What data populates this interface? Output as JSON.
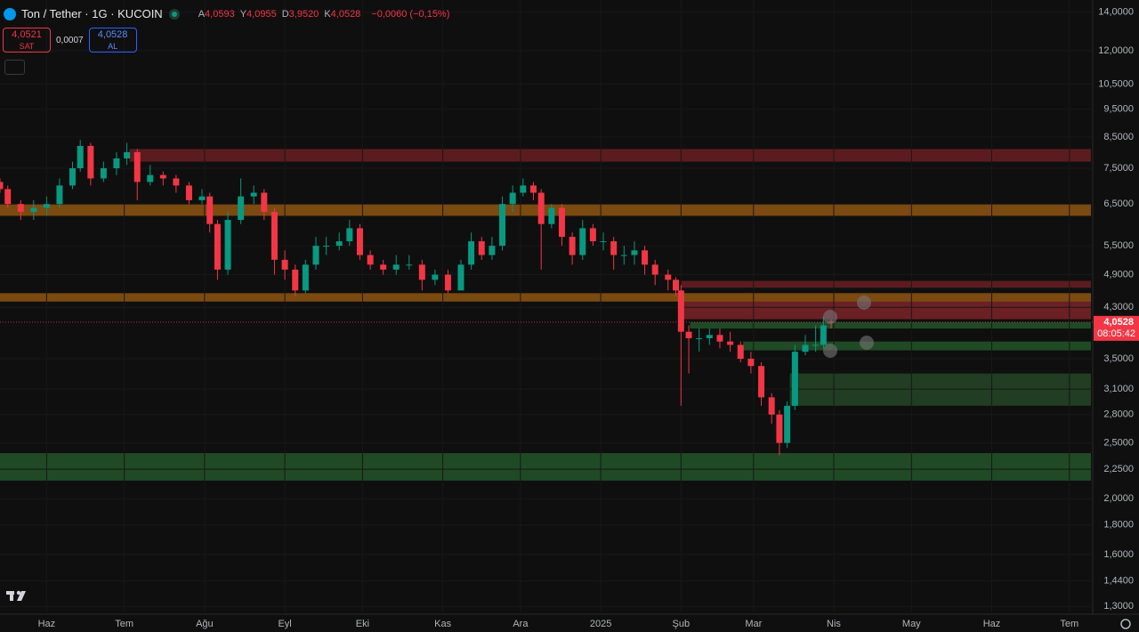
{
  "header": {
    "symbol": "Ton / Tether · 1G · KUCOIN",
    "ohlc": [
      {
        "key": "A",
        "value": "4,0593"
      },
      {
        "key": "Y",
        "value": "4,0955"
      },
      {
        "key": "D",
        "value": "3,9520"
      },
      {
        "key": "K",
        "value": "4,0528"
      }
    ],
    "change": "−0,0060 (−0,15%)",
    "sell": {
      "price": "4,0521",
      "label": "SAT"
    },
    "spread": "0,0007",
    "buy": {
      "price": "4,0528",
      "label": "AL"
    }
  },
  "chart_data": {
    "type": "candlestick",
    "log_scale": true,
    "x": [
      -18,
      -15,
      -10,
      -5,
      0,
      5,
      10,
      13,
      17,
      22,
      27,
      31,
      35,
      40,
      45,
      50,
      55,
      60,
      63,
      66,
      70,
      75,
      80,
      84,
      88,
      92,
      96,
      100,
      104,
      108,
      113,
      117,
      121,
      125,
      130,
      135,
      140,
      145,
      150,
      155,
      160,
      164,
      168,
      172,
      176,
      180,
      184,
      188,
      191,
      195,
      199,
      203,
      207,
      211,
      215,
      219,
      223,
      227,
      231,
      235,
      240,
      243,
      245,
      248,
      252,
      256,
      260,
      264,
      268,
      272,
      276,
      280,
      283,
      286,
      289,
      293,
      297,
      300,
      303
    ],
    "open": [
      7.1,
      6.9,
      6.5,
      6.3,
      6.4,
      6.5,
      7.0,
      7.5,
      8.2,
      7.2,
      7.5,
      7.8,
      8.0,
      7.1,
      7.3,
      7.2,
      7.0,
      6.6,
      6.7,
      6.0,
      5.0,
      6.1,
      6.7,
      6.8,
      6.3,
      5.2,
      5.0,
      4.6,
      5.1,
      5.5,
      5.5,
      5.6,
      5.9,
      5.3,
      5.1,
      5.0,
      5.1,
      5.1,
      4.8,
      4.9,
      4.6,
      5.1,
      5.6,
      5.3,
      5.5,
      6.5,
      6.8,
      7.0,
      6.8,
      6.0,
      6.4,
      5.7,
      5.3,
      5.9,
      5.6,
      5.6,
      5.3,
      5.3,
      5.4,
      5.1,
      4.9,
      4.8,
      4.6,
      3.9,
      3.8,
      3.8,
      3.85,
      3.75,
      3.7,
      3.5,
      3.4,
      3.0,
      2.8,
      2.5,
      2.9,
      3.6,
      3.7,
      3.7,
      4.0593
    ],
    "high": [
      7.2,
      7.0,
      6.6,
      6.6,
      6.7,
      7.2,
      7.7,
      8.4,
      8.3,
      7.7,
      8.0,
      8.3,
      8.1,
      7.6,
      7.4,
      7.3,
      7.1,
      6.9,
      6.8,
      6.1,
      6.3,
      7.2,
      7.0,
      6.9,
      6.4,
      5.4,
      5.1,
      5.2,
      5.7,
      5.7,
      5.8,
      6.1,
      6.0,
      5.4,
      5.2,
      5.3,
      5.3,
      5.2,
      5.0,
      5.0,
      5.2,
      5.8,
      5.7,
      5.7,
      6.7,
      7.0,
      7.2,
      7.1,
      6.9,
      6.5,
      6.5,
      5.8,
      6.1,
      6.0,
      5.8,
      5.7,
      5.5,
      5.6,
      5.5,
      5.2,
      5.0,
      4.85,
      4.7,
      4.0,
      3.95,
      3.95,
      3.95,
      3.9,
      3.75,
      3.6,
      3.45,
      3.05,
      2.85,
      2.95,
      3.7,
      3.85,
      4.0,
      4.15,
      4.0955
    ],
    "low": [
      6.8,
      6.4,
      6.1,
      6.1,
      6.2,
      6.4,
      6.9,
      7.4,
      7.0,
      7.1,
      7.3,
      7.6,
      6.6,
      7.0,
      7.0,
      6.8,
      6.5,
      6.5,
      5.8,
      4.8,
      4.9,
      6.0,
      6.5,
      6.1,
      4.9,
      4.8,
      4.5,
      4.55,
      5.0,
      5.3,
      5.4,
      5.5,
      5.2,
      5.0,
      4.9,
      4.9,
      5.0,
      4.6,
      4.7,
      4.55,
      4.6,
      5.0,
      5.2,
      5.2,
      5.4,
      6.3,
      6.7,
      6.6,
      5.0,
      5.9,
      5.5,
      5.1,
      5.2,
      5.5,
      5.4,
      5.0,
      5.1,
      5.1,
      4.9,
      4.7,
      4.6,
      4.5,
      2.9,
      3.3,
      3.6,
      3.7,
      3.65,
      3.6,
      3.45,
      3.3,
      2.9,
      2.7,
      2.38,
      2.45,
      2.85,
      3.55,
      3.6,
      3.65,
      3.952
    ],
    "close": [
      6.9,
      6.5,
      6.3,
      6.4,
      6.5,
      7.0,
      7.5,
      8.2,
      7.2,
      7.5,
      7.8,
      8.0,
      7.1,
      7.3,
      7.2,
      7.0,
      6.6,
      6.7,
      6.0,
      5.0,
      6.1,
      6.7,
      6.8,
      6.3,
      5.2,
      5.0,
      4.6,
      5.1,
      5.5,
      5.5,
      5.6,
      5.9,
      5.3,
      5.1,
      5.0,
      5.1,
      5.1,
      4.8,
      4.9,
      4.6,
      5.1,
      5.6,
      5.3,
      5.5,
      6.5,
      6.8,
      7.0,
      6.8,
      6.0,
      6.4,
      5.7,
      5.3,
      5.9,
      5.6,
      5.6,
      5.3,
      5.3,
      5.4,
      5.1,
      4.9,
      4.8,
      4.6,
      3.9,
      3.8,
      3.8,
      3.85,
      3.75,
      3.7,
      3.5,
      3.4,
      3.0,
      2.8,
      2.5,
      2.9,
      3.6,
      3.7,
      3.7,
      4.0,
      4.0528
    ],
    "up_color": "#089981",
    "down_color": "#f23645",
    "xlim": [
      -18,
      404
    ],
    "xticks": [
      {
        "value": 0,
        "label": "Haz"
      },
      {
        "value": 30,
        "label": "Tem"
      },
      {
        "value": 61,
        "label": "Ağu"
      },
      {
        "value": 92,
        "label": "Eyl"
      },
      {
        "value": 122,
        "label": "Eki"
      },
      {
        "value": 153,
        "label": "Kas"
      },
      {
        "value": 183,
        "label": "Ara"
      },
      {
        "value": 214,
        "label": "2025"
      },
      {
        "value": 245,
        "label": "Şub"
      },
      {
        "value": 273,
        "label": "Mar"
      },
      {
        "value": 304,
        "label": "Nis"
      },
      {
        "value": 334,
        "label": "May"
      },
      {
        "value": 365,
        "label": "Haz"
      },
      {
        "value": 395,
        "label": "Tem"
      }
    ],
    "ylim": [
      1.26,
      14.7
    ],
    "yticks": [
      {
        "value": 14,
        "label": "14,0000"
      },
      {
        "value": 12,
        "label": "12,0000"
      },
      {
        "value": 10.5,
        "label": "10,5000"
      },
      {
        "value": 9.5,
        "label": "9,5000"
      },
      {
        "value": 8.5,
        "label": "8,5000"
      },
      {
        "value": 7.5,
        "label": "7,5000"
      },
      {
        "value": 6.5,
        "label": "6,5000"
      },
      {
        "value": 5.5,
        "label": "5,5000"
      },
      {
        "value": 4.9,
        "label": "4,9000"
      },
      {
        "value": 4.3,
        "label": "4,3000"
      },
      {
        "value": 3.5,
        "label": "3,5000"
      },
      {
        "value": 3.1,
        "label": "3,1000"
      },
      {
        "value": 2.8,
        "label": "2,8000"
      },
      {
        "value": 2.5,
        "label": "2,5000"
      },
      {
        "value": 2.25,
        "label": "2,2500"
      },
      {
        "value": 2.0,
        "label": "2,0000"
      },
      {
        "value": 1.8,
        "label": "1,8000"
      },
      {
        "value": 1.6,
        "label": "1,6000"
      },
      {
        "value": 1.44,
        "label": "1,4400"
      },
      {
        "value": 1.3,
        "label": "1,3000"
      }
    ],
    "grid": true,
    "last_price": {
      "value": 4.0528,
      "label": "4,0528",
      "countdown": "08:05:42"
    },
    "zones": [
      {
        "from_x": 32,
        "low": 7.7,
        "high": 8.1,
        "color": "#5b1c20"
      },
      {
        "from_x": -18,
        "low": 6.2,
        "high": 6.5,
        "color": "#7b4a10"
      },
      {
        "from_x": 245,
        "low": 4.1,
        "high": 4.55,
        "color": "#6b2024"
      },
      {
        "from_x": 245,
        "low": 4.65,
        "high": 4.78,
        "color": "#5b1c20"
      },
      {
        "from_x": -18,
        "low": 4.4,
        "high": 4.55,
        "color": "#7b4a10"
      },
      {
        "from_x": 248.5,
        "low": 3.95,
        "high": 4.05,
        "color": "#1f4a25"
      },
      {
        "from_x": 269,
        "low": 3.62,
        "high": 3.75,
        "color": "#1f4a25"
      },
      {
        "from_x": 287,
        "low": 2.9,
        "high": 3.3,
        "color": "#213d22"
      },
      {
        "from_x": -18,
        "low": 2.15,
        "high": 2.4,
        "color": "#1f4a25"
      }
    ]
  }
}
